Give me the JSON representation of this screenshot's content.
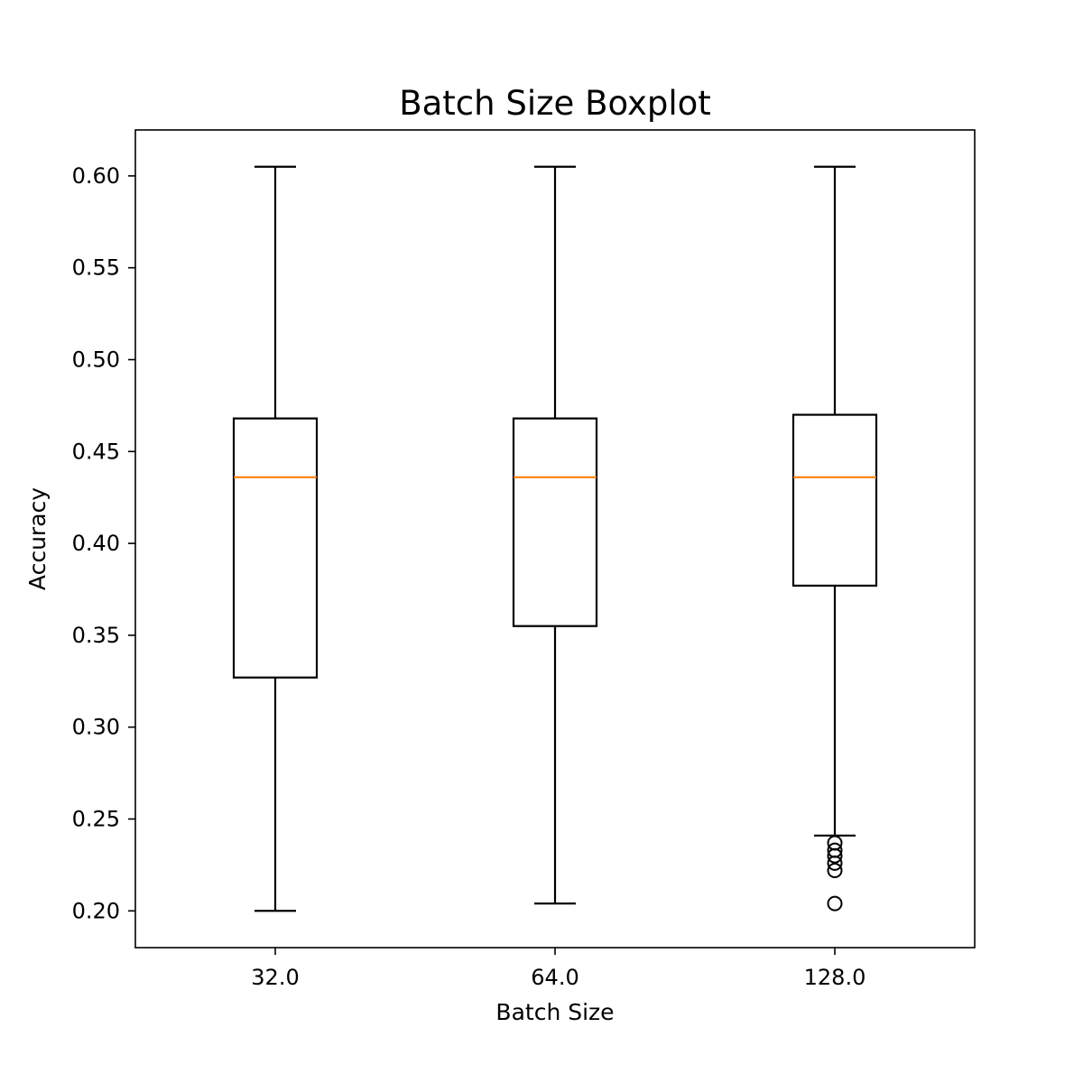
{
  "chart_data": {
    "type": "boxplot",
    "title": "Batch Size Boxplot",
    "xlabel": "Batch Size",
    "ylabel": "Accuracy",
    "categories": [
      "32.0",
      "64.0",
      "128.0"
    ],
    "ylim": [
      0.18,
      0.625
    ],
    "yticks": [
      0.2,
      0.25,
      0.3,
      0.35,
      0.4,
      0.45,
      0.5,
      0.55,
      0.6
    ],
    "ytick_labels": [
      "0.20",
      "0.25",
      "0.30",
      "0.35",
      "0.40",
      "0.45",
      "0.50",
      "0.55",
      "0.60"
    ],
    "grid": false,
    "boxes": [
      {
        "category": "32.0",
        "whisker_low": 0.2,
        "q1": 0.327,
        "median": 0.436,
        "q3": 0.468,
        "whisker_high": 0.605,
        "outliers": []
      },
      {
        "category": "64.0",
        "whisker_low": 0.204,
        "q1": 0.355,
        "median": 0.436,
        "q3": 0.468,
        "whisker_high": 0.605,
        "outliers": []
      },
      {
        "category": "128.0",
        "whisker_low": 0.241,
        "q1": 0.377,
        "median": 0.436,
        "q3": 0.47,
        "whisker_high": 0.605,
        "outliers": [
          0.237,
          0.233,
          0.23,
          0.226,
          0.222,
          0.204
        ]
      }
    ],
    "colors": {
      "box": "#000000",
      "median": "#ff7f0e",
      "outlier": "#000000"
    }
  }
}
